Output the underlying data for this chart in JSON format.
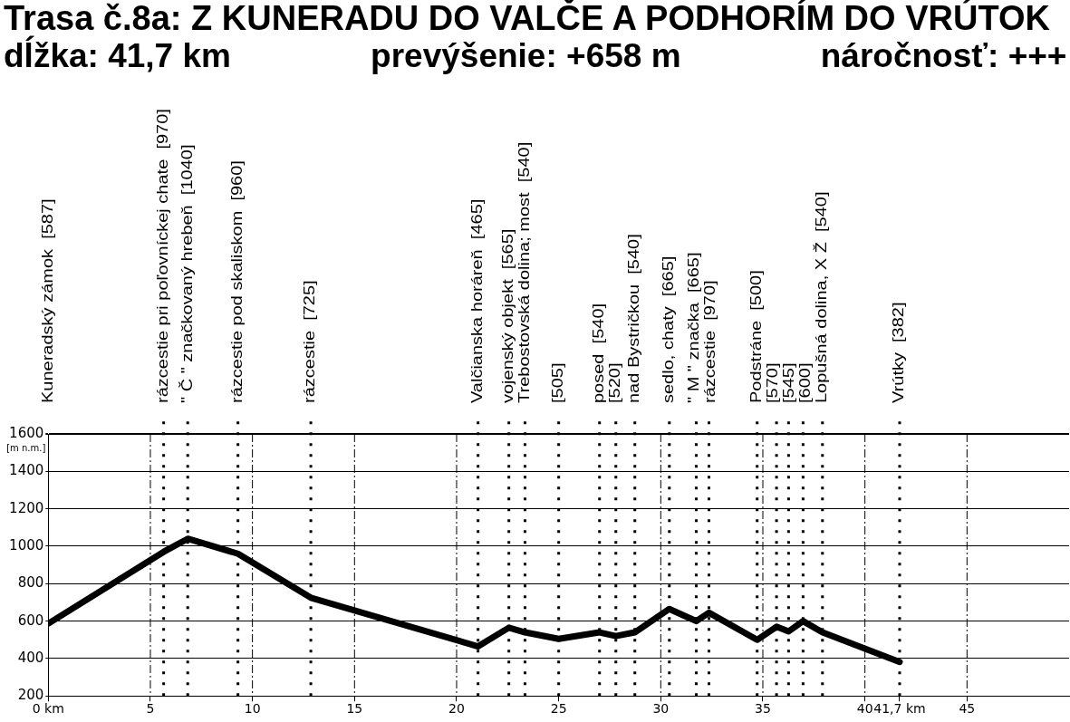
{
  "chart_data": {
    "type": "line",
    "title": "Trasa č.8a: Z KUNERADU DO VALČE A PODHORÍM DO VRÚTOK",
    "subtitle": "dĺžka: 41,7 km               prevýšenie: +658 m               náročnosť: +++",
    "ylabel": "[m n.m.]",
    "annotations": [
      "Kuneradský zámok  [587]",
      "[505]",
      "[520]",
      "[570]",
      "[545]",
      "[600]"
    ],
    "x": [
      0,
      5.65,
      6.83,
      9.29,
      12.86,
      21.05,
      22.56,
      23.35,
      25,
      27,
      27.8,
      28.73,
      30.42,
      31.74,
      32.36,
      34.72,
      35.67,
      36.26,
      36.97,
      37.92,
      41.7
    ],
    "series": [
      {
        "color": "#000000",
        "values": [
          587,
          970,
          1040,
          960,
          725,
          465,
          565,
          540,
          505,
          540,
          520,
          540,
          665,
          600,
          645,
          500,
          570,
          545,
          600,
          540,
          382
        ]
      }
    ],
    "xlim": [
      0,
      50
    ],
    "xticks": [
      {
        "value": 0,
        "label": "0 km"
      },
      5,
      10,
      15,
      20,
      25,
      30,
      35,
      40,
      {
        "value": 41.7,
        "label": "41,7 km"
      },
      45
    ],
    "ylim": [
      200,
      1600
    ],
    "yticks": [
      200,
      400,
      600,
      800,
      1000,
      1200,
      1400,
      1600
    ],
    "grid": true,
    "marker": "none",
    "line_style": "solid",
    "ref_lines": [
      {
        "axis": "x",
        "value": 5.65,
        "label": "rázcestie pri poľovníckej chate  [970]",
        "line_style": "dotted"
      },
      {
        "axis": "x",
        "value": 6.83,
        "label": "\" Č \" značkovaný hrebeň  [1040]",
        "line_style": "dotted"
      },
      {
        "axis": "x",
        "value": 9.29,
        "label": "rázcestie pod skaliskom  [960]",
        "line_style": "dotted"
      },
      {
        "axis": "x",
        "value": 12.86,
        "label": "rázcestie  [725]",
        "line_style": "dotted"
      },
      {
        "axis": "x",
        "value": 21.05,
        "label": "Valčianska horáreň  [465]",
        "line_style": "dotted"
      },
      {
        "axis": "x",
        "value": 22.56,
        "label": "vojenský objekt  [565]",
        "line_style": "dotted"
      },
      {
        "axis": "x",
        "value": 23.35,
        "label": "Trebostovská dolina; most  [540]",
        "line_style": "dotted"
      },
      {
        "axis": "x",
        "value": 25,
        "line_style": "dotted"
      },
      {
        "axis": "x",
        "value": 27,
        "label": "posed  [540]",
        "line_style": "dotted"
      },
      {
        "axis": "x",
        "value": 27.8,
        "line_style": "dotted"
      },
      {
        "axis": "x",
        "value": 28.73,
        "label": "nad Bystričkou  [540]",
        "line_style": "dotted"
      },
      {
        "axis": "x",
        "value": 30.42,
        "label": "sedlo, chaty  [665]",
        "line_style": "dotted"
      },
      {
        "axis": "x",
        "value": 31.74,
        "label": "\" M \" značka  [665]",
        "line_style": "dotted"
      },
      {
        "axis": "x",
        "value": 32.36,
        "label": "rázcestie  [970]",
        "line_style": "dotted"
      },
      {
        "axis": "x",
        "value": 34.72,
        "label": "Podstráne  [500]",
        "line_style": "dotted"
      },
      {
        "axis": "x",
        "value": 35.67,
        "line_style": "dotted"
      },
      {
        "axis": "x",
        "value": 36.26,
        "line_style": "dotted"
      },
      {
        "axis": "x",
        "value": 36.97,
        "line_style": "dotted"
      },
      {
        "axis": "x",
        "value": 37.92,
        "label": "Lopušná dolina, X Ž  [540]",
        "line_style": "dotted"
      },
      {
        "axis": "x",
        "value": 41.7,
        "label": "Vrútky  [382]",
        "line_style": "dotted"
      }
    ]
  }
}
